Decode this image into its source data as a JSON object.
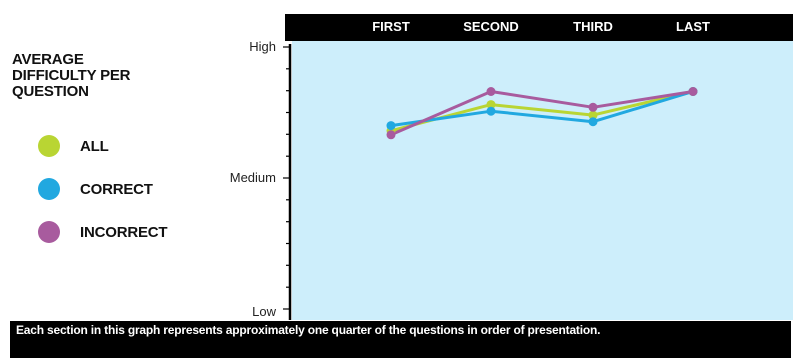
{
  "legend": {
    "title": "AVERAGE\nDIFFICULTY PER\nQUESTION"
  },
  "footer_note": "Each section in this graph represents approximately one quarter of the questions in order of presentation.",
  "colors": {
    "plot_background": "#cdeefb",
    "header_band": "#000000",
    "all": "#b9d533",
    "correct": "#21a8e0",
    "incorrect": "#a85b9e"
  },
  "chart_data": {
    "type": "line",
    "categories": [
      "FIRST",
      "SECOND",
      "THIRD",
      "LAST"
    ],
    "y_axis_labels": [
      "High",
      "Medium",
      "Low"
    ],
    "y_ticks": [
      0,
      1,
      2
    ],
    "ylim": [
      0,
      2
    ],
    "grid": false,
    "legend_placement": "left",
    "series": [
      {
        "name": "ALL",
        "color": "#b9d533",
        "values": [
          1.36,
          1.56,
          1.48,
          1.66
        ]
      },
      {
        "name": "CORRECT",
        "color": "#21a8e0",
        "values": [
          1.4,
          1.51,
          1.43,
          1.66
        ]
      },
      {
        "name": "INCORRECT",
        "color": "#a85b9e",
        "values": [
          1.33,
          1.66,
          1.54,
          1.66
        ]
      }
    ]
  }
}
